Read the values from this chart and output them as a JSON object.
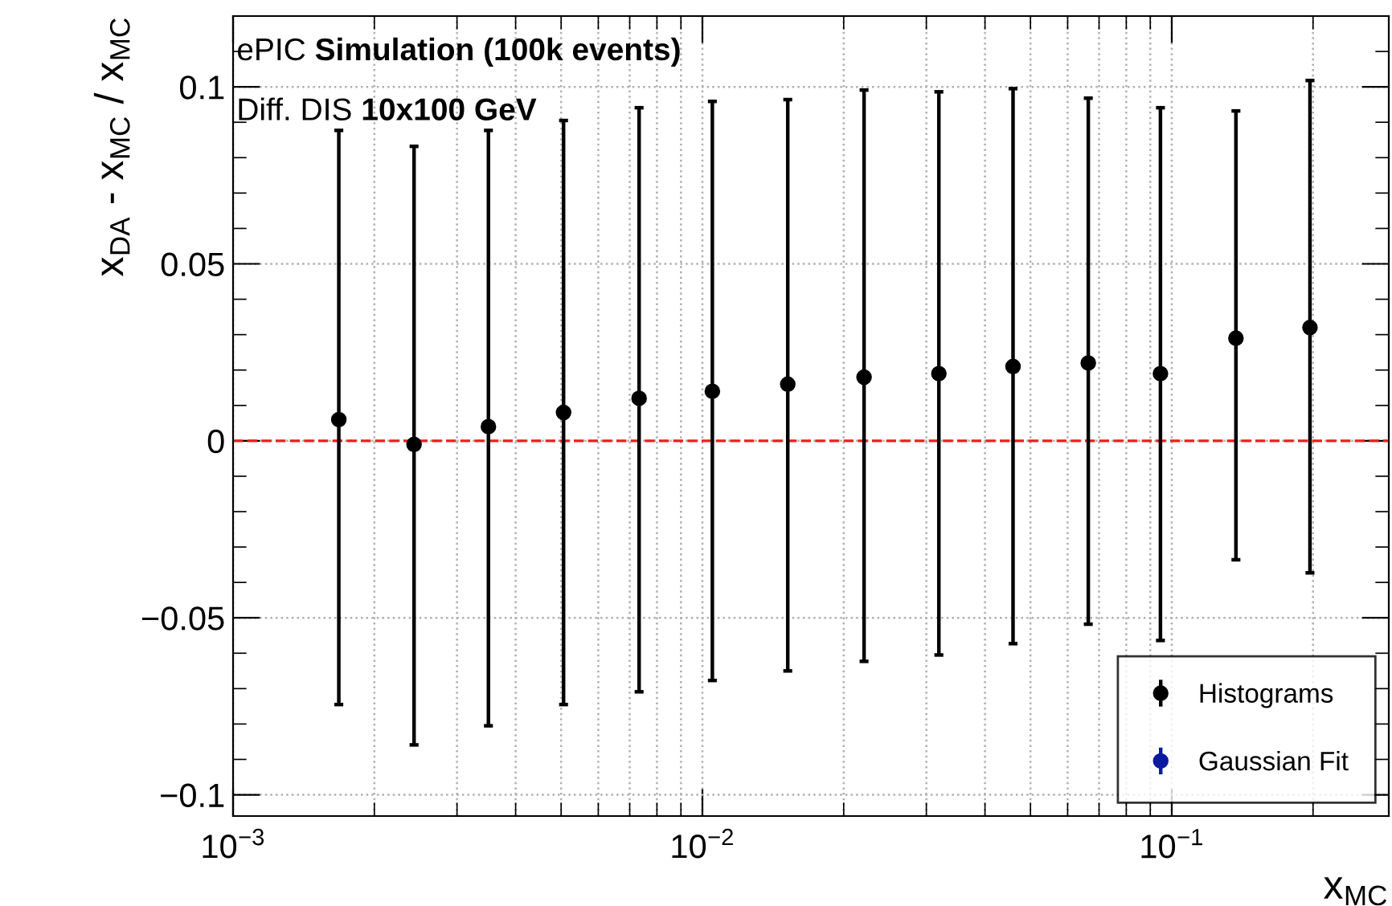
{
  "chart_data": {
    "type": "scatter",
    "xlabel": "x$_{MC}$",
    "ylabel": "x$_{DA}$ - x$_{MC}$ / x$_{MC}$",
    "annotations": [
      "ePIC",
      "Simulation (100k events)",
      "Diff. DIS",
      "10x100 GeV"
    ],
    "log": "x",
    "xlim": [
      0.001,
      0.29
    ],
    "xticks": [
      {
        "value": 0.001,
        "label": "10$^{−3}$"
      },
      {
        "value": 0.01,
        "label": "10$^{−2}$"
      },
      {
        "value": 0.1,
        "label": "10$^{−1}$"
      }
    ],
    "ylim": [
      -0.106,
      0.12
    ],
    "yticks": [
      {
        "value": -0.1,
        "label": "−0.1"
      },
      {
        "value": -0.05,
        "label": "−0.05"
      },
      0,
      0.05,
      0.1
    ],
    "grid": true,
    "legend": "bottom right",
    "marker": "circle",
    "x": [
      0.00168,
      0.00243,
      0.0035,
      0.00506,
      0.00733,
      0.0105,
      0.0152,
      0.0221,
      0.0319,
      0.0459,
      0.0664,
      0.0946,
      0.137,
      0.197
    ],
    "series": [
      {
        "name": "Histograms",
        "color": "#000000",
        "values": [
          0.006,
          -0.001,
          0.004,
          0.008,
          0.012,
          0.014,
          0.016,
          0.018,
          0.019,
          0.021,
          0.022,
          0.019,
          0.029,
          0.032
        ],
        "errors": [
          [
            -0.0745,
            0.0877
          ],
          [
            -0.0859,
            0.0832
          ],
          [
            -0.0805,
            0.0877
          ],
          [
            -0.0745,
            0.0905
          ],
          [
            -0.0709,
            0.0941
          ],
          [
            -0.0677,
            0.0959
          ],
          [
            -0.065,
            0.0964
          ],
          [
            -0.0623,
            0.0991
          ],
          [
            -0.0605,
            0.0986
          ],
          [
            -0.0573,
            0.0995
          ],
          [
            -0.0518,
            0.0968
          ],
          [
            -0.0564,
            0.0941
          ],
          [
            -0.0336,
            0.0932
          ],
          [
            -0.0373,
            0.1018
          ]
        ]
      },
      {
        "name": "Gaussian Fit",
        "color": "#0a1aa0",
        "values": [
          null,
          null,
          null,
          null,
          null,
          null,
          null,
          null,
          null,
          null,
          null,
          null,
          null,
          null
        ]
      }
    ],
    "ref_lines": [
      {
        "axis": "y",
        "value": 0,
        "color": "#e8201e",
        "line_style": "dashed"
      }
    ]
  }
}
